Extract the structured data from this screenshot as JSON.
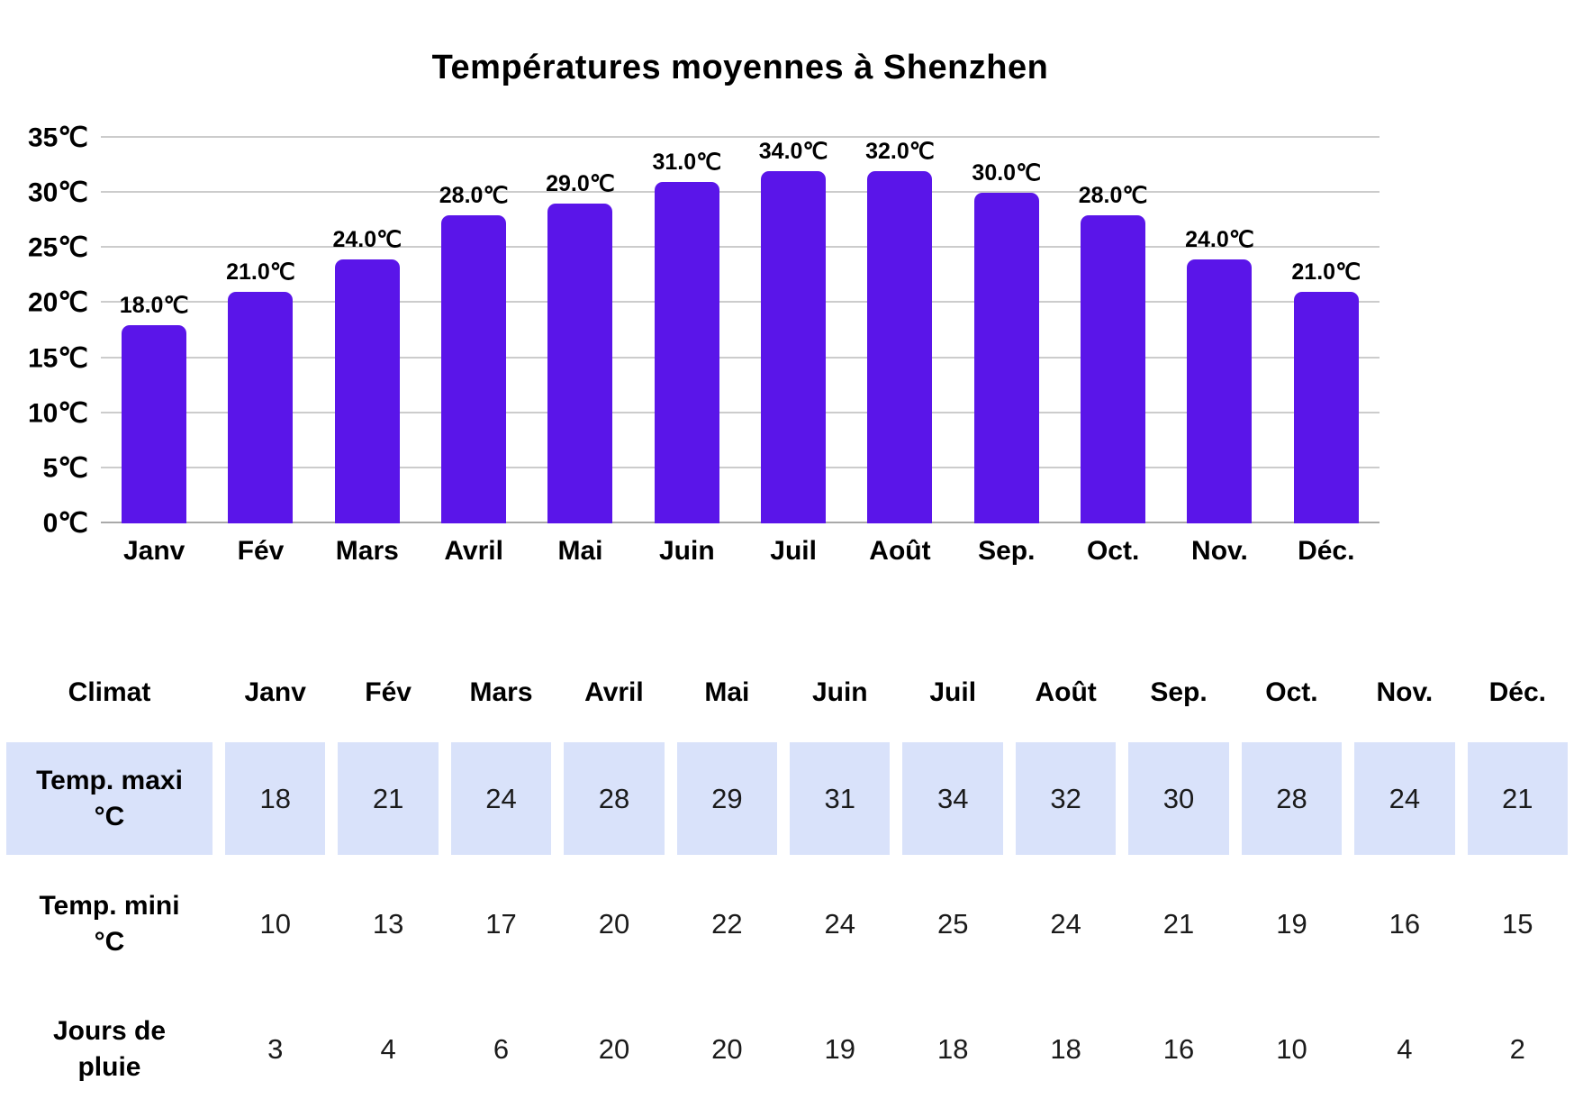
{
  "chart_data": {
    "type": "bar",
    "title": "Températures moyennes à Shenzhen",
    "categories": [
      "Janv",
      "Fév",
      "Mars",
      "Avril",
      "Mai",
      "Juin",
      "Juil",
      "Août",
      "Sep.",
      "Oct.",
      "Nov.",
      "Déc."
    ],
    "values": [
      18,
      21,
      24,
      28,
      29,
      31,
      34,
      32,
      30,
      28,
      24,
      21
    ],
    "bar_labels": [
      "18.0℃",
      "21.0℃",
      "24.0℃",
      "28.0℃",
      "29.0℃",
      "31.0℃",
      "34.0℃",
      "32.0℃",
      "30.0℃",
      "28.0℃",
      "24.0℃",
      "21.0℃"
    ],
    "xlabel": "",
    "ylabel": "",
    "ylim": [
      0,
      35
    ],
    "tick_values": [
      0,
      5,
      10,
      15,
      20,
      25,
      30,
      35
    ],
    "y_tick_labels": [
      "0℃",
      "5℃",
      "10℃",
      "15℃",
      "20℃",
      "25℃",
      "30℃",
      "35℃"
    ],
    "grid": true,
    "legend": "none",
    "bar_color": "#5a15e9"
  },
  "table": {
    "header": [
      "Climat",
      "Janv",
      "Fév",
      "Mars",
      "Avril",
      "Mai",
      "Juin",
      "Juil",
      "Août",
      "Sep.",
      "Oct.",
      "Nov.",
      "Déc."
    ],
    "rows": [
      {
        "label": "Temp. maxi\n°C",
        "highlight": true,
        "values": [
          18,
          21,
          24,
          28,
          29,
          31,
          34,
          32,
          30,
          28,
          24,
          21
        ]
      },
      {
        "label": "Temp. mini\n°C",
        "highlight": false,
        "values": [
          10,
          13,
          17,
          20,
          22,
          24,
          25,
          24,
          21,
          19,
          16,
          15
        ]
      },
      {
        "label": "Jours de\npluie",
        "highlight": false,
        "values": [
          3,
          4,
          6,
          20,
          20,
          19,
          18,
          18,
          16,
          10,
          4,
          2
        ]
      }
    ]
  },
  "colors": {
    "bar": "#5a15e9",
    "gridline": "#cccccc",
    "baseline": "#a9a9a9",
    "highlight": "#d9e2fa",
    "text": "#000000"
  }
}
